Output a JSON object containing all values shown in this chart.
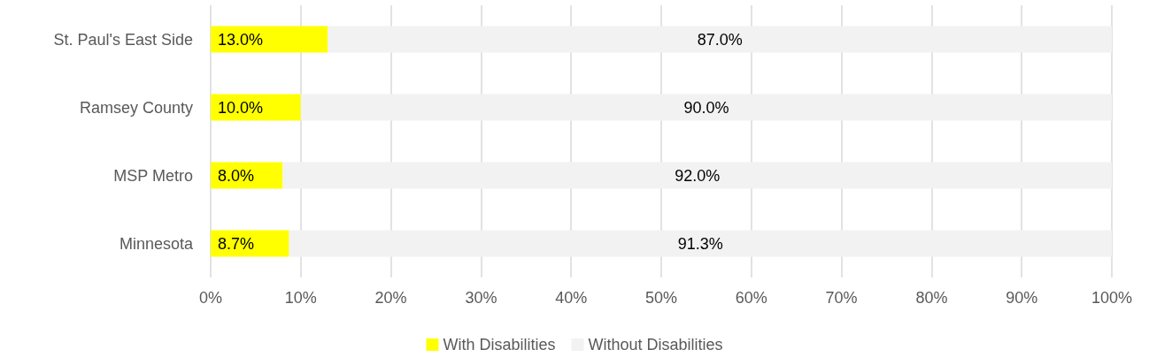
{
  "chart_data": {
    "type": "bar",
    "orientation": "horizontal",
    "stacked": true,
    "categories": [
      "St. Paul's East Side",
      "Ramsey County",
      "MSP Metro",
      "Minnesota"
    ],
    "series": [
      {
        "name": "With Disabilities",
        "color": "#ffff00",
        "values": [
          13.0,
          10.0,
          8.0,
          8.7
        ],
        "value_labels": [
          "13.0%",
          "10.0%",
          "8.0%",
          "8.7%"
        ]
      },
      {
        "name": "Without Disabilities",
        "color": "#f2f2f2",
        "values": [
          87.0,
          90.0,
          92.0,
          91.3
        ],
        "value_labels": [
          "87.0%",
          "90.0%",
          "92.0%",
          "91.3%"
        ]
      }
    ],
    "xlim": [
      0,
      100
    ],
    "xticks": [
      {
        "value": 0,
        "label": "0%"
      },
      {
        "value": 10,
        "label": "10%"
      },
      {
        "value": 20,
        "label": "20%"
      },
      {
        "value": 30,
        "label": "30%"
      },
      {
        "value": 40,
        "label": "40%"
      },
      {
        "value": 50,
        "label": "50%"
      },
      {
        "value": 60,
        "label": "60%"
      },
      {
        "value": 70,
        "label": "70%"
      },
      {
        "value": 80,
        "label": "80%"
      },
      {
        "value": 90,
        "label": "90%"
      },
      {
        "value": 100,
        "label": "100%"
      }
    ],
    "grid": "x",
    "legend": "bottom"
  }
}
